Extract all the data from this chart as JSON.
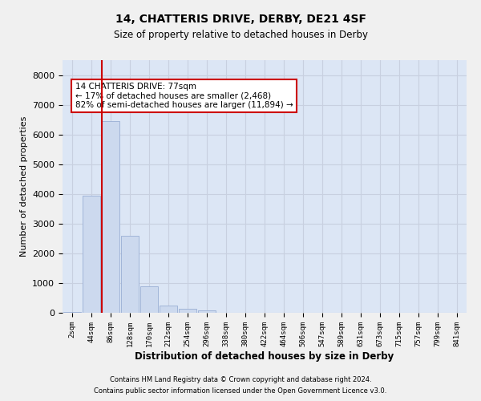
{
  "title1": "14, CHATTERIS DRIVE, DERBY, DE21 4SF",
  "title2": "Size of property relative to detached houses in Derby",
  "xlabel": "Distribution of detached houses by size in Derby",
  "ylabel": "Number of detached properties",
  "categories": [
    "2sqm",
    "44sqm",
    "86sqm",
    "128sqm",
    "170sqm",
    "212sqm",
    "254sqm",
    "296sqm",
    "338sqm",
    "380sqm",
    "422sqm",
    "464sqm",
    "506sqm",
    "547sqm",
    "589sqm",
    "631sqm",
    "673sqm",
    "715sqm",
    "757sqm",
    "799sqm",
    "841sqm"
  ],
  "values": [
    20,
    3950,
    6450,
    2600,
    900,
    250,
    130,
    90,
    0,
    0,
    0,
    0,
    0,
    0,
    0,
    0,
    0,
    0,
    0,
    0,
    0
  ],
  "bar_color": "#ccd9ee",
  "bar_edge_color": "#99aed4",
  "vline_index": 2,
  "vline_color": "#cc0000",
  "annotation_line1": "14 CHATTERIS DRIVE: 77sqm",
  "annotation_line2": "← 17% of detached houses are smaller (2,468)",
  "annotation_line3": "82% of semi-detached houses are larger (11,894) →",
  "annotation_box_color": "#ffffff",
  "annotation_box_edge": "#cc0000",
  "ylim": [
    0,
    8500
  ],
  "yticks": [
    0,
    1000,
    2000,
    3000,
    4000,
    5000,
    6000,
    7000,
    8000
  ],
  "grid_color": "#c8d0e0",
  "background_color": "#dce6f5",
  "fig_color": "#f0f0f0",
  "footer1": "Contains HM Land Registry data © Crown copyright and database right 2024.",
  "footer2": "Contains public sector information licensed under the Open Government Licence v3.0."
}
